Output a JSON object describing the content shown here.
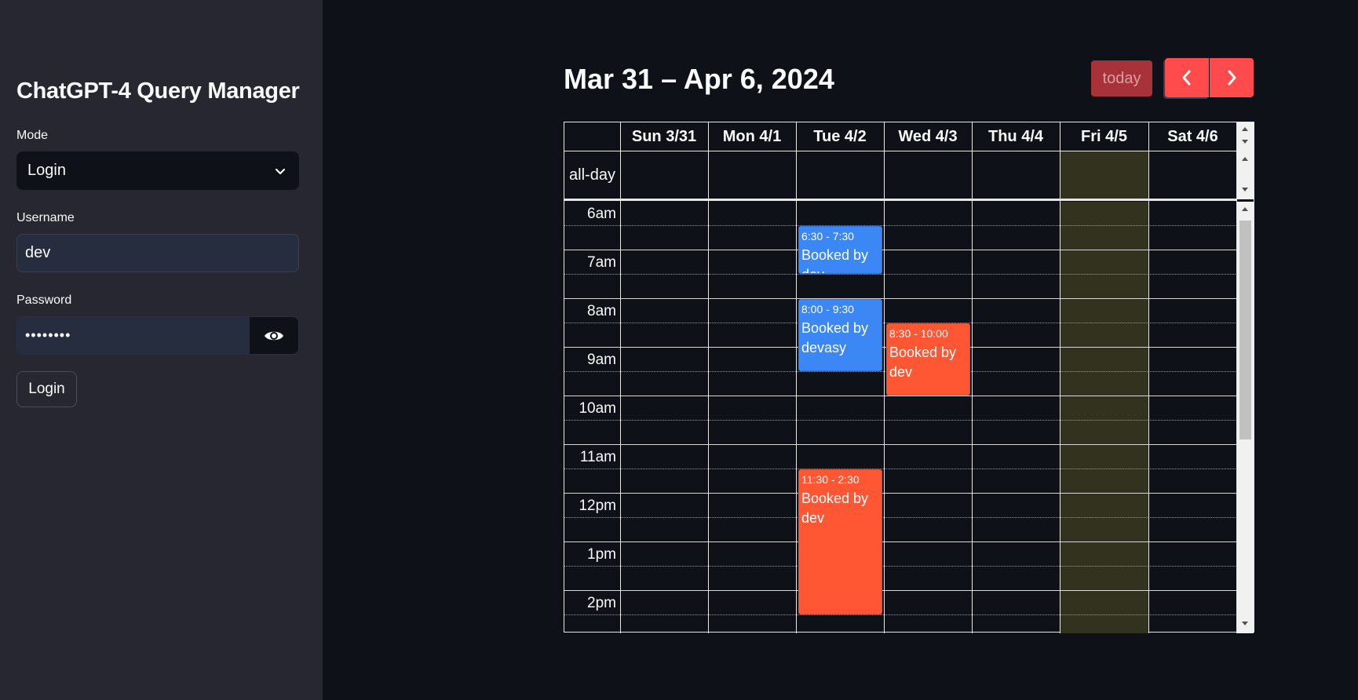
{
  "sidebar": {
    "title": "ChatGPT-4 Query Manager",
    "mode_label": "Mode",
    "mode_value": "Login",
    "username_label": "Username",
    "username_value": "dev",
    "password_label": "Password",
    "password_value": "••••••••",
    "login_button": "Login"
  },
  "calendar": {
    "title": "Mar 31 – Apr 6, 2024",
    "today_button": "today",
    "days": [
      "Sun 3/31",
      "Mon 4/1",
      "Tue 4/2",
      "Wed 4/3",
      "Thu 4/4",
      "Fri 4/5",
      "Sat 4/6"
    ],
    "allday_label": "all-day",
    "hours": [
      "6am",
      "7am",
      "8am",
      "9am",
      "10am",
      "11am",
      "12pm",
      "1pm",
      "2pm"
    ],
    "events": [
      {
        "time": "6:30 - 7:30",
        "title": "Booked by dev",
        "color": "#3a87f5"
      },
      {
        "time": "8:00 - 9:30",
        "title": "Booked by devasy",
        "color": "#3a87f5"
      },
      {
        "time": "8:30 - 10:00",
        "title": "Booked by dev",
        "color": "#ff5733"
      },
      {
        "time": "11:30 - 2:30",
        "title": "Booked by dev",
        "color": "#ff5733"
      }
    ],
    "accent_color": "#ff4b4b",
    "today_highlight_color": "#32321f"
  }
}
